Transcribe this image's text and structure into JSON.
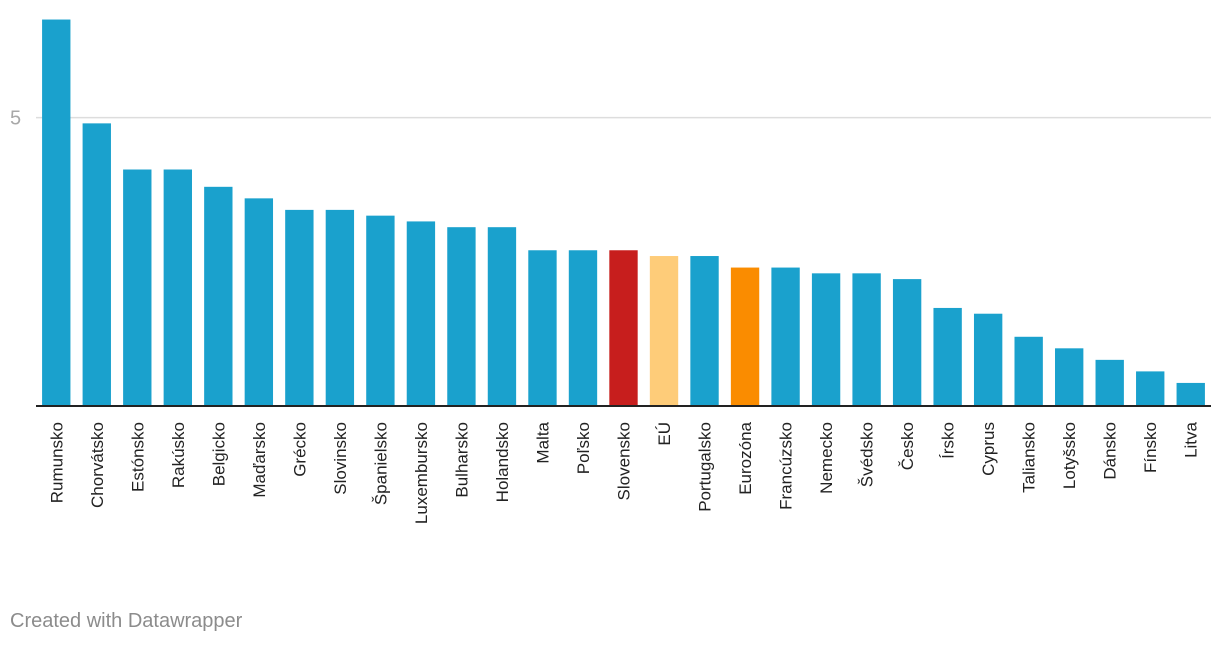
{
  "chart_data": {
    "type": "bar",
    "title": "",
    "xlabel": "",
    "ylabel": "",
    "ylim": [
      0,
      6.9
    ],
    "yticks": [
      5
    ],
    "grid": true,
    "categories": [
      "Rumunsko",
      "Chorvátsko",
      "Estónsko",
      "Rakúsko",
      "Belgicko",
      "Maďarsko",
      "Grécko",
      "Slovinsko",
      "Španielsko",
      "Luxembursko",
      "Bulharsko",
      "Holandsko",
      "Malta",
      "Poľsko",
      "Slovensko",
      "EÚ",
      "Portugalsko",
      "Eurozóna",
      "Francúzsko",
      "Nemecko",
      "Švédsko",
      "Česko",
      "Írsko",
      "Cyprus",
      "Taliansko",
      "Lotyšsko",
      "Dánsko",
      "Fínsko",
      "Litva"
    ],
    "values": [
      6.7,
      4.9,
      4.1,
      4.1,
      3.8,
      3.6,
      3.4,
      3.4,
      3.3,
      3.2,
      3.1,
      3.1,
      2.7,
      2.7,
      2.7,
      2.6,
      2.6,
      2.4,
      2.4,
      2.3,
      2.3,
      2.2,
      1.7,
      1.6,
      1.2,
      1.0,
      0.8,
      0.6,
      0.4
    ],
    "colors": {
      "default": "#1aa1cd",
      "Slovensko": "#c71e1d",
      "EÚ": "#fecc79",
      "Eurozóna": "#fa8c00"
    }
  },
  "footer": {
    "credit": "Created with Datawrapper"
  }
}
